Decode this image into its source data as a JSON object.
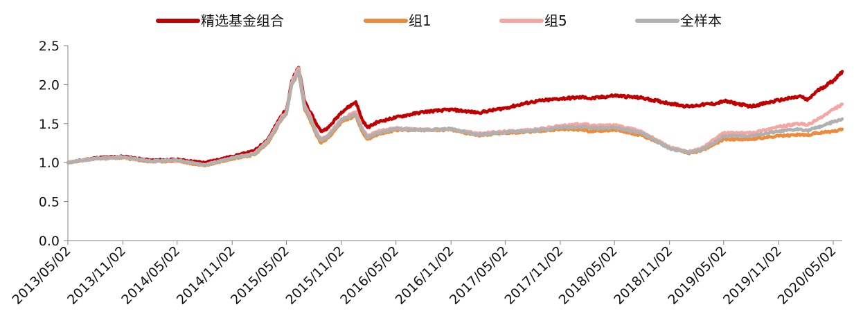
{
  "chart_data": {
    "type": "line",
    "title": "",
    "xlabel": "",
    "ylabel": "",
    "ylim": [
      0,
      2.5
    ],
    "yticks": [
      "0.0",
      "0.5",
      "1.0",
      "1.5",
      "2.0",
      "2.5"
    ],
    "x_ticks": [
      "2013/05/02",
      "2013/11/02",
      "2014/05/02",
      "2014/11/02",
      "2015/05/02",
      "2015/11/02",
      "2016/05/02",
      "2016/11/02",
      "2017/05/02",
      "2017/11/02",
      "2018/05/02",
      "2018/11/02",
      "2019/05/02",
      "2019/11/02",
      "2020/05/02"
    ],
    "x_range": [
      "2013/05/02",
      "2020/06/01"
    ],
    "grid": false,
    "legend_position": "top",
    "x": [
      "2013/05/02",
      "2013/08/01",
      "2013/11/02",
      "2014/02/01",
      "2014/05/02",
      "2014/08/01",
      "2014/11/02",
      "2015/01/15",
      "2015/03/01",
      "2015/04/15",
      "2015/05/02",
      "2015/05/20",
      "2015/06/12",
      "2015/07/01",
      "2015/07/20",
      "2015/08/10",
      "2015/08/26",
      "2015/09/20",
      "2015/11/02",
      "2015/12/20",
      "2016/01/10",
      "2016/01/28",
      "2016/03/01",
      "2016/05/02",
      "2016/08/01",
      "2016/11/02",
      "2017/02/01",
      "2017/05/02",
      "2017/08/01",
      "2017/11/02",
      "2018/01/25",
      "2018/02/10",
      "2018/05/02",
      "2018/08/01",
      "2018/11/02",
      "2019/01/04",
      "2019/02/15",
      "2019/04/10",
      "2019/05/02",
      "2019/08/01",
      "2019/11/02",
      "2020/01/15",
      "2020/02/05",
      "2020/03/10",
      "2020/05/02",
      "2020/06/01"
    ],
    "series": [
      {
        "name": "精选基金组合",
        "color": "#c00000",
        "values": [
          1.0,
          1.06,
          1.08,
          1.03,
          1.04,
          1.0,
          1.08,
          1.15,
          1.3,
          1.6,
          1.68,
          2.05,
          2.22,
          1.8,
          1.65,
          1.5,
          1.4,
          1.45,
          1.65,
          1.78,
          1.55,
          1.45,
          1.52,
          1.58,
          1.65,
          1.68,
          1.64,
          1.7,
          1.78,
          1.82,
          1.84,
          1.82,
          1.86,
          1.83,
          1.76,
          1.72,
          1.74,
          1.76,
          1.79,
          1.72,
          1.8,
          1.85,
          1.8,
          1.92,
          2.05,
          2.17
        ]
      },
      {
        "name": "组1",
        "color": "#ed8b3a",
        "values": [
          1.0,
          1.05,
          1.06,
          1.01,
          1.02,
          0.96,
          1.05,
          1.1,
          1.25,
          1.55,
          1.62,
          2.0,
          2.16,
          1.7,
          1.55,
          1.35,
          1.25,
          1.32,
          1.52,
          1.6,
          1.4,
          1.3,
          1.36,
          1.42,
          1.42,
          1.42,
          1.35,
          1.38,
          1.4,
          1.43,
          1.42,
          1.4,
          1.42,
          1.35,
          1.2,
          1.12,
          1.15,
          1.25,
          1.3,
          1.3,
          1.34,
          1.36,
          1.35,
          1.38,
          1.4,
          1.43
        ]
      },
      {
        "name": "组5",
        "color": "#f4a6a2",
        "values": [
          1.0,
          1.05,
          1.07,
          1.02,
          1.03,
          0.97,
          1.06,
          1.12,
          1.28,
          1.58,
          1.65,
          2.03,
          2.21,
          1.75,
          1.6,
          1.4,
          1.3,
          1.36,
          1.56,
          1.65,
          1.45,
          1.34,
          1.4,
          1.44,
          1.42,
          1.43,
          1.37,
          1.4,
          1.42,
          1.47,
          1.5,
          1.47,
          1.48,
          1.4,
          1.2,
          1.14,
          1.18,
          1.32,
          1.38,
          1.38,
          1.46,
          1.5,
          1.48,
          1.55,
          1.68,
          1.75
        ]
      },
      {
        "name": "全样本",
        "color": "#b0b0b0",
        "values": [
          1.0,
          1.05,
          1.07,
          1.02,
          1.03,
          0.97,
          1.06,
          1.11,
          1.27,
          1.56,
          1.63,
          2.01,
          2.18,
          1.72,
          1.58,
          1.37,
          1.28,
          1.34,
          1.54,
          1.62,
          1.43,
          1.32,
          1.38,
          1.43,
          1.42,
          1.43,
          1.36,
          1.39,
          1.41,
          1.45,
          1.46,
          1.44,
          1.45,
          1.38,
          1.18,
          1.13,
          1.16,
          1.28,
          1.34,
          1.34,
          1.4,
          1.43,
          1.41,
          1.45,
          1.52,
          1.56
        ]
      }
    ]
  }
}
